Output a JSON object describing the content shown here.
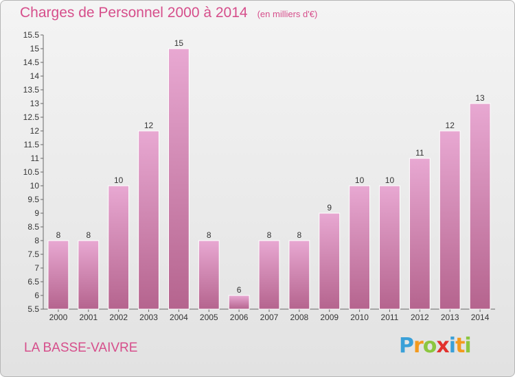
{
  "header": {
    "title": "Charges de Personnel 2000 à 2014",
    "unit": "(en milliers d'€)"
  },
  "footer": {
    "location": "LA BASSE-VAIVRE",
    "logo_letters": [
      "P",
      "r",
      "o",
      "x",
      "i",
      "t",
      "i"
    ],
    "logo_colors": [
      "#3aa0d8",
      "#f39a1e",
      "#8cc63f",
      "#e2312d",
      "#3aa0d8",
      "#f39a1e",
      "#8cc63f"
    ]
  },
  "colors": {
    "bar_top": "#e8a8d2",
    "bar_bottom": "#b5648e",
    "text_accent": "#d64e8b"
  },
  "chart_data": {
    "type": "bar",
    "title": "Charges de Personnel 2000 à 2014",
    "categories": [
      "2000",
      "2001",
      "2002",
      "2003",
      "2004",
      "2005",
      "2006",
      "2007",
      "2008",
      "2009",
      "2010",
      "2011",
      "2012",
      "2013",
      "2014"
    ],
    "values": [
      8,
      8,
      10,
      12,
      15,
      8,
      6,
      8,
      8,
      9,
      10,
      10,
      11,
      12,
      13
    ],
    "ylim": [
      5.5,
      15.5
    ],
    "yticks": [
      5.5,
      6,
      6.5,
      7,
      7.5,
      8,
      8.5,
      9,
      9.5,
      10,
      10.5,
      11,
      11.5,
      12,
      12.5,
      13,
      13.5,
      14,
      14.5,
      15,
      15.5
    ],
    "grid": false,
    "legend": "none"
  }
}
